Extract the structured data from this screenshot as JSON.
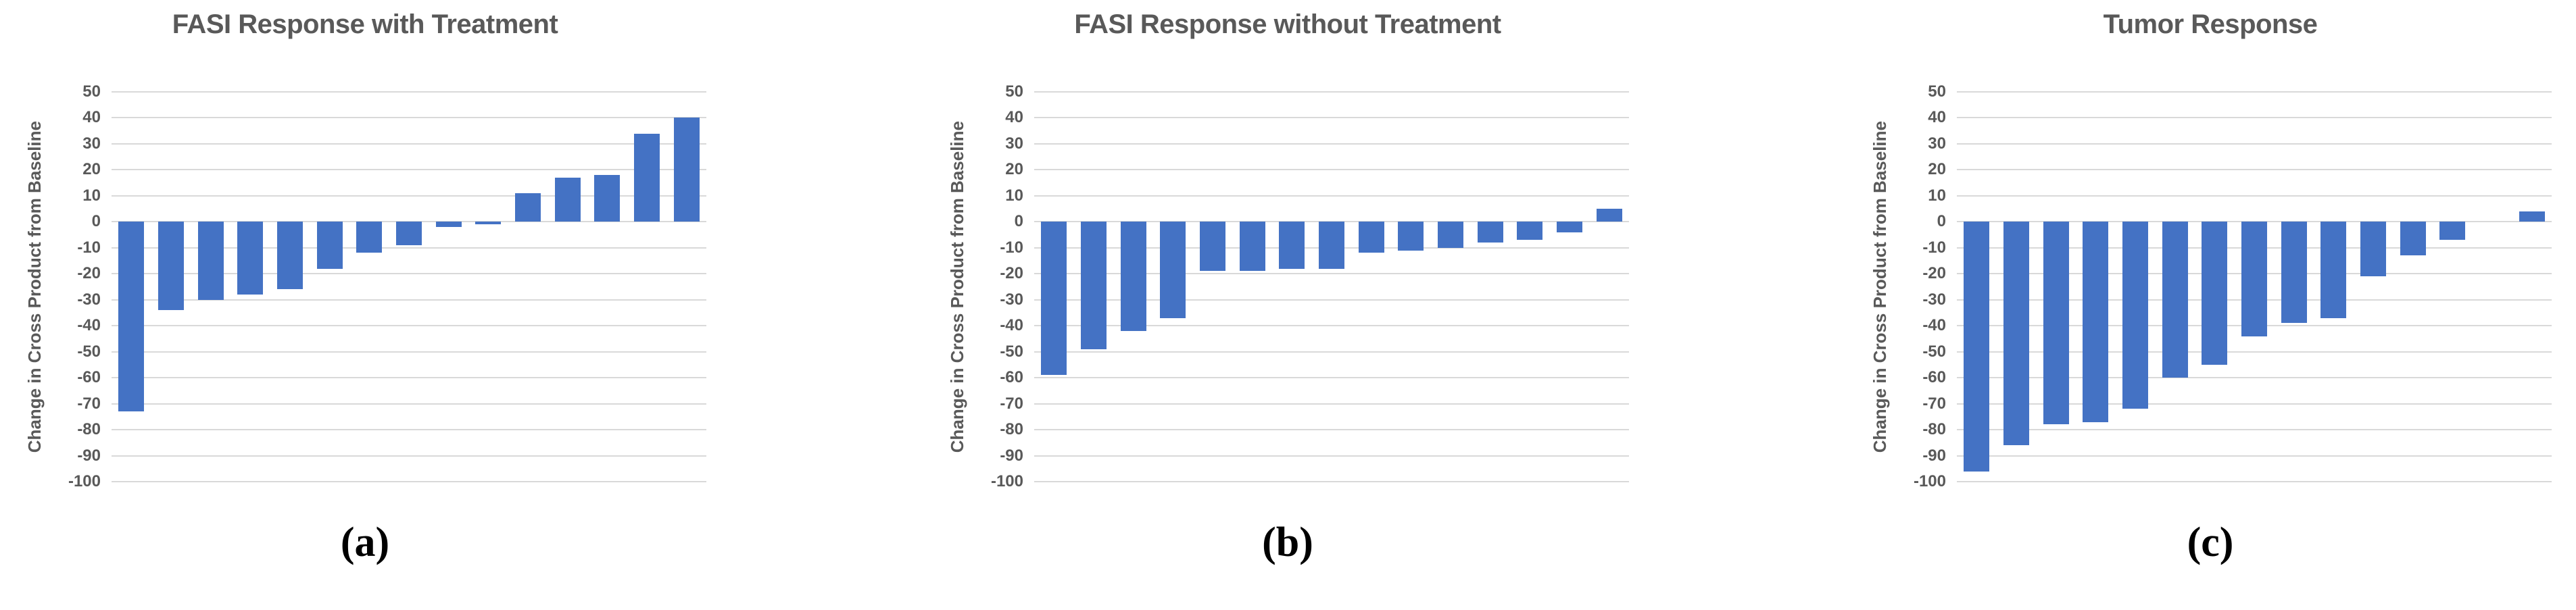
{
  "colors": {
    "bar_fill": "#4472C4",
    "gridline": "#D9D9D9",
    "title_text": "#595959",
    "axis_text": "#595959",
    "caption_text": "#000000",
    "background": "#FFFFFF"
  },
  "axis": {
    "ymin": -100,
    "ymax": 50,
    "tick_step": 10,
    "yticks": [
      50,
      40,
      30,
      20,
      10,
      0,
      -10,
      -20,
      -30,
      -40,
      -50,
      -60,
      -70,
      -80,
      -90,
      -100
    ]
  },
  "chart_data": [
    {
      "type": "bar",
      "title": "FASI Response with Treatment",
      "ylabel": "Change in Cross Product from Baseline",
      "caption": "(a)",
      "values": [
        -73,
        -34,
        -30,
        -28,
        -26,
        -18,
        -12,
        -9,
        -2,
        -1,
        11,
        17,
        18,
        34,
        40
      ],
      "ylim": [
        -100,
        50
      ],
      "yticks": [
        50,
        40,
        30,
        20,
        10,
        0,
        -10,
        -20,
        -30,
        -40,
        -50,
        -60,
        -70,
        -80,
        -90,
        -100
      ],
      "grid": true,
      "bar_color": "#4472C4",
      "legend": "none",
      "xlabel": ""
    },
    {
      "type": "bar",
      "title": "FASI Response without Treatment",
      "ylabel": "Change in Cross Product from Baseline",
      "caption": "(b)",
      "values": [
        -59,
        -49,
        -42,
        -37,
        -19,
        -19,
        -18,
        -18,
        -12,
        -11,
        -10,
        -8,
        -7,
        -4,
        5
      ],
      "ylim": [
        -100,
        50
      ],
      "yticks": [
        50,
        40,
        30,
        20,
        10,
        0,
        -10,
        -20,
        -30,
        -40,
        -50,
        -60,
        -70,
        -80,
        -90,
        -100
      ],
      "grid": true,
      "bar_color": "#4472C4",
      "legend": "none",
      "xlabel": ""
    },
    {
      "type": "bar",
      "title": "Tumor Response",
      "ylabel": "Change in Cross Product from Baseline",
      "caption": "(c)",
      "values": [
        -96,
        -86,
        -78,
        -77,
        -72,
        -60,
        -55,
        -44,
        -39,
        -37,
        -21,
        -13,
        -7,
        0,
        4
      ],
      "ylim": [
        -100,
        50
      ],
      "yticks": [
        50,
        40,
        30,
        20,
        10,
        0,
        -10,
        -20,
        -30,
        -40,
        -50,
        -60,
        -70,
        -80,
        -90,
        -100
      ],
      "grid": true,
      "bar_color": "#4472C4",
      "legend": "none",
      "xlabel": ""
    }
  ]
}
